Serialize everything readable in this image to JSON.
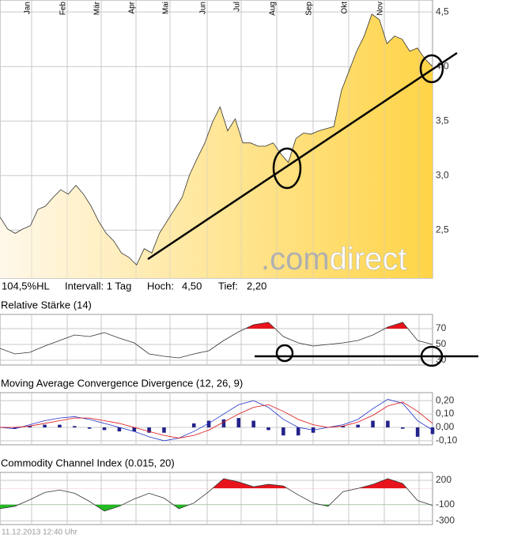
{
  "chart_data": [
    {
      "type": "area",
      "color": "#333333",
      "fill_from": "#fff8ea",
      "fill_to": "#ffd447",
      "grid": true,
      "months": [
        "Jan",
        "Feb",
        "Mär",
        "Apr",
        "Mai",
        "Jun",
        "Jul",
        "Aug",
        "Sep",
        "Okt",
        "Nov"
      ],
      "values": [
        2.62,
        2.51,
        2.47,
        2.51,
        2.54,
        2.69,
        2.72,
        2.8,
        2.87,
        2.83,
        2.91,
        2.83,
        2.72,
        2.58,
        2.47,
        2.4,
        2.29,
        2.25,
        2.18,
        2.33,
        2.29,
        2.47,
        2.58,
        2.69,
        2.8,
        3.01,
        3.16,
        3.3,
        3.49,
        3.63,
        3.41,
        3.52,
        3.3,
        3.3,
        3.27,
        3.27,
        3.3,
        3.2,
        3.12,
        3.34,
        3.39,
        3.38,
        3.41,
        3.43,
        3.45,
        3.78,
        3.96,
        4.14,
        4.28,
        4.48,
        4.43,
        4.21,
        4.28,
        4.25,
        4.14,
        4.17,
        4.07,
        4.0
      ],
      "ylim": [
        2.06,
        4.61
      ],
      "yticks": [
        {
          "value": 2.5,
          "label": "2,5"
        },
        {
          "value": 3.0,
          "label": "3,0"
        },
        {
          "value": 3.5,
          "label": "3,5"
        },
        {
          "value": 4.0,
          "label": "4,0"
        },
        {
          "value": 4.5,
          "label": "4,5"
        }
      ]
    },
    {
      "type": "line",
      "title": "Relative Stärke (14)",
      "color": "#333333",
      "grid": true,
      "upper": 70,
      "upper_color": "#e8141c",
      "lower": 30,
      "lower_color": "#22bb22",
      "values": [
        45,
        38,
        40,
        48,
        55,
        62,
        60,
        65,
        58,
        52,
        38,
        35,
        33,
        38,
        42,
        55,
        66,
        75,
        78,
        60,
        52,
        48,
        50,
        52,
        55,
        62,
        72,
        78,
        55,
        50
      ],
      "ylim": [
        24,
        88
      ],
      "yticks": [
        30,
        50,
        70
      ]
    },
    {
      "type": "line",
      "title": "Moving Average Convergence Divergence (12, 26, 9)",
      "grid": true,
      "series": [
        {
          "color": "#22228a",
          "style": "bar",
          "values": [
            0.0,
            -0.01,
            0.01,
            0.02,
            0.02,
            0.01,
            -0.01,
            -0.02,
            -0.03,
            -0.03,
            -0.04,
            -0.04,
            0.0,
            0.03,
            0.05,
            0.06,
            0.07,
            0.05,
            -0.02,
            -0.06,
            -0.06,
            -0.04,
            0.0,
            0.01,
            0.02,
            0.05,
            0.05,
            -0.01,
            -0.07,
            -0.05
          ]
        },
        {
          "color": "#2233cc",
          "style": "line",
          "values": [
            0.0,
            -0.01,
            0.02,
            0.05,
            0.07,
            0.08,
            0.06,
            0.03,
            0.0,
            -0.03,
            -0.07,
            -0.1,
            -0.08,
            -0.03,
            0.03,
            0.1,
            0.17,
            0.2,
            0.15,
            0.06,
            0.0,
            -0.02,
            0.0,
            0.02,
            0.06,
            0.14,
            0.21,
            0.18,
            0.05,
            -0.02
          ]
        },
        {
          "color": "#dd1111",
          "style": "line",
          "values": [
            0.0,
            0.0,
            0.01,
            0.03,
            0.05,
            0.07,
            0.07,
            0.05,
            0.03,
            0.0,
            -0.03,
            -0.06,
            -0.08,
            -0.06,
            -0.02,
            0.04,
            0.1,
            0.15,
            0.17,
            0.12,
            0.06,
            0.02,
            0.0,
            0.01,
            0.04,
            0.09,
            0.16,
            0.19,
            0.12,
            0.03
          ]
        }
      ],
      "ylim": [
        -0.13,
        0.26
      ],
      "yticks": [
        {
          "value": -0.1,
          "label": "-0,10"
        },
        {
          "value": 0,
          "label": "0,00"
        },
        {
          "value": 0.1,
          "label": "0,10"
        },
        {
          "value": 0.2,
          "label": "0,20"
        }
      ]
    },
    {
      "type": "line",
      "title": "Commodity Channel Index (0.015, 20)",
      "color": "#333333",
      "grid": true,
      "upper": 100,
      "upper_color": "#e8141c",
      "lower": -100,
      "lower_color": "#22bb22",
      "values": [
        -150,
        -120,
        -40,
        50,
        80,
        40,
        -60,
        -180,
        -120,
        -30,
        40,
        -20,
        -150,
        -80,
        60,
        220,
        180,
        120,
        150,
        130,
        20,
        -80,
        -120,
        60,
        100,
        150,
        220,
        160,
        -50,
        -110
      ],
      "ylim": [
        -346,
        297
      ],
      "yticks": [
        -300,
        -100,
        200
      ]
    }
  ],
  "info": {
    "range": "104,5%HL",
    "interval": "Intervall: 1 Tag",
    "high_label": "Hoch:",
    "high": "4,50",
    "low_label": "Tief:",
    "low": "2,20"
  },
  "watermark": {
    "prefix": ".com",
    "name": "direct"
  },
  "timestamp": "11.12.2013 12:40 Uhr"
}
